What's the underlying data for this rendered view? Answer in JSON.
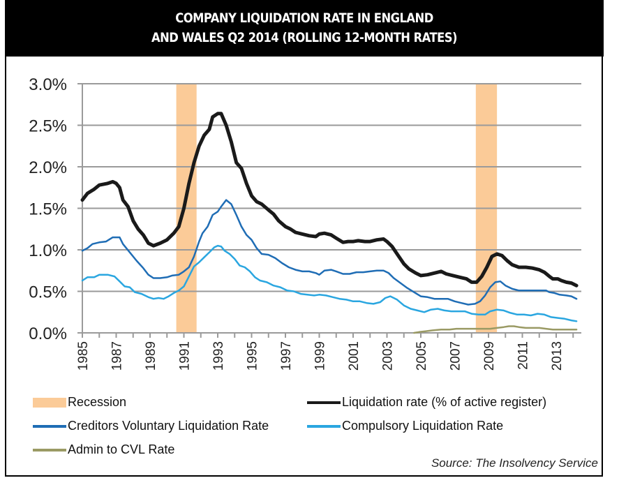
{
  "header": {
    "line1": "COMPANY LIQUIDATION RATE IN ENGLAND",
    "line2": "AND WALES Q2 2014 (ROLLING 12-MONTH RATES)"
  },
  "colors": {
    "recession": "#fbcb98",
    "liquidation": "#1a1a1a",
    "cvl": "#1f6db5",
    "compulsory": "#2aa6e0",
    "admin_cvl": "#9a9a64",
    "grid": "#9a9a9a"
  },
  "legend": {
    "recession": "Recession",
    "liquidation": "Liquidation rate (% of active register)",
    "cvl": "Creditors Voluntary Liquidation Rate",
    "compulsory": "Compulsory Liquidation Rate",
    "admin_cvl": "Admin to CVL Rate"
  },
  "source": "Source: The Insolvency Service",
  "chart_data": {
    "type": "line",
    "title": "COMPANY LIQUIDATION RATE IN ENGLAND AND WALES Q2 2014 (ROLLING 12-MONTH RATES)",
    "xlabel": "",
    "ylabel": "",
    "xlim": [
      1985,
      2014.4
    ],
    "ylim": [
      0,
      3.0
    ],
    "y_ticks": [
      "0.0%",
      "0.5%",
      "1.0%",
      "1.5%",
      "2.0%",
      "2.5%",
      "3.0%"
    ],
    "y_tick_values": [
      0,
      0.5,
      1.0,
      1.5,
      2.0,
      2.5,
      3.0
    ],
    "x_tick_labels": [
      "1985",
      "1987",
      "1989",
      "1991",
      "1993",
      "1995",
      "1997",
      "1999",
      "2001",
      "2003",
      "2005",
      "2007",
      "2009",
      "2011",
      "2013"
    ],
    "x_minor_ticks": "yearly",
    "grid": true,
    "legend_position": "bottom",
    "recessions": [
      {
        "name": "Recession",
        "start": 1990.55,
        "end": 1991.75
      },
      {
        "name": "Recession",
        "start": 2008.25,
        "end": 2009.5
      }
    ],
    "series": [
      {
        "name": "Liquidation rate (% of active register)",
        "key": "liquidation",
        "x": [
          1985.0,
          1985.3,
          1985.7,
          1986.0,
          1986.5,
          1986.8,
          1987.0,
          1987.2,
          1987.4,
          1987.7,
          1988.0,
          1988.3,
          1988.6,
          1988.9,
          1989.2,
          1989.6,
          1990.0,
          1990.4,
          1990.7,
          1991.0,
          1991.3,
          1991.6,
          1991.9,
          1992.2,
          1992.5,
          1992.7,
          1993.0,
          1993.2,
          1993.5,
          1993.8,
          1994.1,
          1994.4,
          1994.7,
          1995.0,
          1995.3,
          1995.6,
          1996.0,
          1996.3,
          1996.6,
          1997.0,
          1997.3,
          1997.6,
          1998.0,
          1998.4,
          1998.8,
          1999.0,
          1999.3,
          1999.7,
          2000.0,
          2000.4,
          2000.7,
          2001.0,
          2001.3,
          2001.7,
          2002.0,
          2002.4,
          2002.8,
          2003.0,
          2003.3,
          2003.6,
          2004.0,
          2004.3,
          2004.7,
          2005.0,
          2005.4,
          2005.8,
          2006.2,
          2006.5,
          2006.9,
          2007.3,
          2007.7,
          2008.0,
          2008.3,
          2008.6,
          2008.9,
          2009.2,
          2009.5,
          2009.8,
          2010.1,
          2010.4,
          2010.8,
          2011.2,
          2011.6,
          2012.0,
          2012.3,
          2012.6,
          2012.8,
          2013.1,
          2013.3,
          2013.6,
          2013.9,
          2014.2
        ],
        "values": [
          1.6,
          1.68,
          1.73,
          1.78,
          1.8,
          1.82,
          1.8,
          1.75,
          1.6,
          1.52,
          1.35,
          1.25,
          1.18,
          1.08,
          1.05,
          1.08,
          1.12,
          1.2,
          1.28,
          1.5,
          1.8,
          2.05,
          2.25,
          2.38,
          2.45,
          2.6,
          2.64,
          2.64,
          2.5,
          2.3,
          2.05,
          1.98,
          1.8,
          1.65,
          1.58,
          1.55,
          1.48,
          1.43,
          1.35,
          1.28,
          1.25,
          1.21,
          1.19,
          1.17,
          1.16,
          1.19,
          1.2,
          1.18,
          1.14,
          1.09,
          1.1,
          1.1,
          1.11,
          1.1,
          1.1,
          1.12,
          1.13,
          1.1,
          1.04,
          0.95,
          0.83,
          0.77,
          0.72,
          0.69,
          0.7,
          0.72,
          0.74,
          0.71,
          0.69,
          0.67,
          0.65,
          0.61,
          0.61,
          0.68,
          0.79,
          0.92,
          0.95,
          0.93,
          0.87,
          0.82,
          0.79,
          0.79,
          0.78,
          0.76,
          0.73,
          0.68,
          0.65,
          0.65,
          0.63,
          0.61,
          0.6,
          0.57
        ]
      },
      {
        "name": "Creditors Voluntary Liquidation Rate",
        "key": "cvl",
        "x": [
          1985.0,
          1985.3,
          1985.6,
          1986.0,
          1986.4,
          1986.8,
          1987.2,
          1987.4,
          1987.8,
          1988.2,
          1988.6,
          1988.9,
          1989.2,
          1989.6,
          1990.0,
          1990.3,
          1990.7,
          1991.0,
          1991.3,
          1991.6,
          1991.9,
          1992.1,
          1992.4,
          1992.7,
          1993.0,
          1993.2,
          1993.5,
          1993.8,
          1994.1,
          1994.4,
          1994.7,
          1995.0,
          1995.3,
          1995.6,
          1996.0,
          1996.4,
          1996.8,
          1997.2,
          1997.6,
          1998.0,
          1998.4,
          1998.8,
          1999.0,
          1999.3,
          1999.7,
          2000.0,
          2000.4,
          2000.8,
          2001.2,
          2001.6,
          2002.0,
          2002.4,
          2002.8,
          2003.1,
          2003.4,
          2003.8,
          2004.2,
          2004.6,
          2005.0,
          2005.4,
          2005.8,
          2006.2,
          2006.6,
          2007.0,
          2007.4,
          2007.8,
          2008.2,
          2008.5,
          2008.8,
          2009.1,
          2009.4,
          2009.7,
          2010.0,
          2010.4,
          2010.8,
          2011.2,
          2011.6,
          2012.0,
          2012.4,
          2012.6,
          2012.9,
          2013.2,
          2013.6,
          2013.9,
          2014.2
        ],
        "values": [
          0.99,
          1.02,
          1.07,
          1.09,
          1.1,
          1.15,
          1.15,
          1.07,
          0.97,
          0.87,
          0.78,
          0.7,
          0.66,
          0.66,
          0.67,
          0.69,
          0.7,
          0.74,
          0.79,
          0.92,
          1.1,
          1.2,
          1.28,
          1.42,
          1.46,
          1.52,
          1.6,
          1.55,
          1.42,
          1.28,
          1.18,
          1.12,
          1.02,
          0.95,
          0.94,
          0.9,
          0.84,
          0.79,
          0.76,
          0.74,
          0.74,
          0.72,
          0.7,
          0.75,
          0.76,
          0.74,
          0.71,
          0.71,
          0.73,
          0.73,
          0.74,
          0.75,
          0.75,
          0.72,
          0.66,
          0.6,
          0.54,
          0.49,
          0.44,
          0.43,
          0.41,
          0.41,
          0.41,
          0.38,
          0.36,
          0.34,
          0.35,
          0.38,
          0.45,
          0.55,
          0.61,
          0.62,
          0.57,
          0.53,
          0.51,
          0.51,
          0.51,
          0.51,
          0.51,
          0.49,
          0.48,
          0.46,
          0.45,
          0.44,
          0.41
        ]
      },
      {
        "name": "Compulsory Liquidation Rate",
        "key": "compulsory",
        "x": [
          1985.0,
          1985.3,
          1985.7,
          1986.0,
          1986.5,
          1986.9,
          1987.2,
          1987.5,
          1987.8,
          1988.1,
          1988.5,
          1988.9,
          1989.2,
          1989.5,
          1989.8,
          1990.1,
          1990.4,
          1990.7,
          1991.0,
          1991.3,
          1991.6,
          1991.9,
          1992.2,
          1992.5,
          1992.8,
          1993.0,
          1993.2,
          1993.4,
          1993.7,
          1994.0,
          1994.3,
          1994.6,
          1994.9,
          1995.2,
          1995.5,
          1995.9,
          1996.3,
          1996.7,
          1997.1,
          1997.5,
          1997.9,
          1998.3,
          1998.7,
          1999.0,
          1999.4,
          1999.8,
          2000.2,
          2000.6,
          2001.0,
          2001.4,
          2001.8,
          2002.2,
          2002.6,
          2002.9,
          2003.2,
          2003.6,
          2004.0,
          2004.4,
          2004.8,
          2005.2,
          2005.6,
          2006.0,
          2006.4,
          2006.8,
          2007.2,
          2007.6,
          2008.0,
          2008.4,
          2008.8,
          2009.1,
          2009.5,
          2009.9,
          2010.3,
          2010.7,
          2011.1,
          2011.5,
          2011.9,
          2012.3,
          2012.7,
          2013.1,
          2013.5,
          2013.9,
          2014.2
        ],
        "values": [
          0.63,
          0.67,
          0.67,
          0.7,
          0.7,
          0.68,
          0.62,
          0.56,
          0.55,
          0.49,
          0.47,
          0.43,
          0.41,
          0.42,
          0.41,
          0.44,
          0.48,
          0.51,
          0.56,
          0.68,
          0.8,
          0.85,
          0.91,
          0.97,
          1.03,
          1.05,
          1.04,
          0.99,
          0.95,
          0.89,
          0.81,
          0.79,
          0.74,
          0.67,
          0.63,
          0.61,
          0.57,
          0.55,
          0.51,
          0.5,
          0.47,
          0.46,
          0.45,
          0.46,
          0.45,
          0.43,
          0.41,
          0.4,
          0.38,
          0.38,
          0.36,
          0.35,
          0.37,
          0.42,
          0.44,
          0.4,
          0.33,
          0.29,
          0.27,
          0.25,
          0.28,
          0.29,
          0.27,
          0.26,
          0.26,
          0.26,
          0.23,
          0.22,
          0.22,
          0.26,
          0.28,
          0.27,
          0.24,
          0.22,
          0.22,
          0.21,
          0.23,
          0.22,
          0.19,
          0.18,
          0.17,
          0.15,
          0.14
        ]
      },
      {
        "name": "Admin to CVL Rate",
        "key": "admin_cvl",
        "x": [
          2004.6,
          2004.9,
          2005.3,
          2005.7,
          2006.2,
          2006.7,
          2007.1,
          2007.6,
          2008.1,
          2008.6,
          2009.1,
          2009.5,
          2009.9,
          2010.2,
          2010.5,
          2010.8,
          2011.2,
          2011.6,
          2012.0,
          2012.4,
          2012.8,
          2013.3,
          2013.8,
          2014.2
        ],
        "values": [
          0.0,
          0.01,
          0.02,
          0.03,
          0.04,
          0.04,
          0.05,
          0.05,
          0.05,
          0.05,
          0.05,
          0.06,
          0.07,
          0.08,
          0.08,
          0.07,
          0.06,
          0.06,
          0.06,
          0.05,
          0.04,
          0.04,
          0.04,
          0.04
        ]
      }
    ]
  }
}
